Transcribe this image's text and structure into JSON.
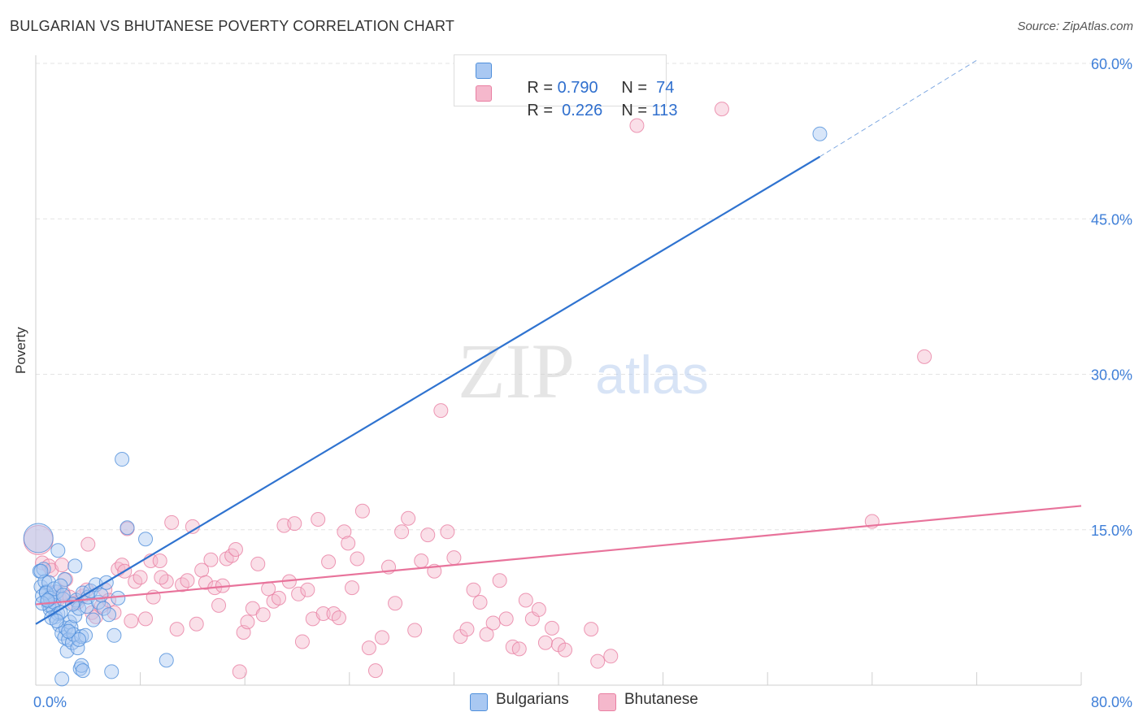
{
  "title": "BULGARIAN VS BHUTANESE POVERTY CORRELATION CHART",
  "source": "Source: ZipAtlas.com",
  "watermark": {
    "zip": "ZIP",
    "atlas": "atlas"
  },
  "legend_top": {
    "rows": [
      {
        "r_label": "R = ",
        "r_value": "0.790",
        "n_label": "N = ",
        "n_value": " 74"
      },
      {
        "r_label": "R = ",
        "r_value": " 0.226",
        "n_label": "N = ",
        "n_value": "113"
      }
    ]
  },
  "legend_bottom": {
    "bulgarians": "Bulgarians",
    "bhutanese": "Bhutanese"
  },
  "colors": {
    "blue_fill": "#a9c8f2",
    "blue_stroke": "#4f8fdb",
    "blue_line": "#2f73d0",
    "pink_fill": "#f5b8cc",
    "pink_stroke": "#e97fa2",
    "pink_line": "#e8739b",
    "axis_text": "#3f7fd8",
    "grid": "#e3e3e3"
  },
  "chart_data": {
    "type": "scatter",
    "title": "BULGARIAN VS BHUTANESE POVERTY CORRELATION CHART",
    "xlabel": "",
    "ylabel": "Poverty",
    "xlim": [
      0,
      80
    ],
    "ylim": [
      0,
      60
    ],
    "x_tick_labels": [
      "0.0%",
      "80.0%"
    ],
    "y_tick_labels": [
      "15.0%",
      "30.0%",
      "45.0%",
      "60.0%"
    ],
    "y_tick_values": [
      15,
      30,
      45,
      60
    ],
    "series": [
      {
        "name": "Bulgarians",
        "R": 0.79,
        "N": 74,
        "trend": {
          "x0": 0,
          "y0": 5.9,
          "x1": 60,
          "y1": 51.0,
          "dash_to_x": 72,
          "dash_to_y": 60.3
        },
        "points": [
          [
            0.2,
            14.2
          ],
          [
            0.3,
            11.0
          ],
          [
            0.4,
            9.5
          ],
          [
            0.5,
            8.6
          ],
          [
            0.6,
            11.2
          ],
          [
            0.7,
            10.0
          ],
          [
            0.8,
            9.0
          ],
          [
            0.9,
            8.1
          ],
          [
            1.0,
            7.7
          ],
          [
            1.1,
            7.3
          ],
          [
            1.2,
            8.5
          ],
          [
            1.3,
            7.5
          ],
          [
            1.4,
            8.0
          ],
          [
            1.5,
            6.6
          ],
          [
            1.6,
            9.0
          ],
          [
            1.7,
            6.9
          ],
          [
            1.8,
            5.8
          ],
          [
            1.9,
            7.0
          ],
          [
            2.0,
            5.0
          ],
          [
            2.1,
            8.3
          ],
          [
            2.2,
            4.6
          ],
          [
            2.3,
            5.5
          ],
          [
            2.4,
            3.3
          ],
          [
            2.5,
            4.4
          ],
          [
            2.6,
            6.1
          ],
          [
            2.7,
            5.6
          ],
          [
            2.8,
            4.1
          ],
          [
            2.9,
            4.9
          ],
          [
            3.0,
            6.7
          ],
          [
            3.1,
            8.2
          ],
          [
            3.2,
            3.6
          ],
          [
            3.3,
            7.4
          ],
          [
            3.5,
            4.7
          ],
          [
            3.6,
            8.9
          ],
          [
            3.8,
            4.8
          ],
          [
            3.9,
            7.6
          ],
          [
            4.0,
            8.5
          ],
          [
            4.2,
            9.1
          ],
          [
            4.4,
            6.3
          ],
          [
            4.6,
            9.7
          ],
          [
            4.8,
            8.0
          ],
          [
            5.0,
            8.7
          ],
          [
            5.2,
            7.4
          ],
          [
            5.4,
            9.9
          ],
          [
            5.6,
            6.8
          ],
          [
            5.8,
            1.3
          ],
          [
            6.0,
            4.8
          ],
          [
            6.3,
            8.4
          ],
          [
            6.6,
            21.8
          ],
          [
            7.0,
            15.2
          ],
          [
            8.4,
            14.1
          ],
          [
            10.0,
            2.4
          ],
          [
            1.0,
            9.9
          ],
          [
            0.8,
            8.9
          ],
          [
            2.2,
            10.2
          ],
          [
            2.8,
            7.8
          ],
          [
            1.7,
            13.0
          ],
          [
            3.0,
            11.5
          ],
          [
            2.0,
            0.6
          ],
          [
            3.4,
            1.6
          ],
          [
            3.5,
            1.9
          ],
          [
            3.6,
            1.4
          ],
          [
            1.1,
            8.4
          ],
          [
            1.4,
            9.3
          ],
          [
            0.5,
            7.9
          ],
          [
            1.2,
            6.5
          ],
          [
            1.9,
            9.6
          ],
          [
            2.1,
            8.7
          ],
          [
            0.4,
            11.0
          ],
          [
            1.6,
            6.2
          ],
          [
            2.5,
            5.2
          ],
          [
            3.3,
            4.4
          ],
          [
            60.0,
            53.2
          ],
          [
            0.9,
            8.2
          ]
        ]
      },
      {
        "name": "Bhutanese",
        "R": 0.226,
        "N": 113,
        "trend": {
          "x0": 0,
          "y0": 7.8,
          "x1": 80,
          "y1": 17.3
        },
        "points": [
          [
            0.2,
            14.0
          ],
          [
            0.5,
            11.8
          ],
          [
            1.0,
            11.5
          ],
          [
            1.2,
            11.1
          ],
          [
            1.5,
            9.0
          ],
          [
            1.8,
            8.4
          ],
          [
            2.1,
            8.9
          ],
          [
            2.3,
            10.2
          ],
          [
            2.6,
            8.5
          ],
          [
            2.9,
            7.9
          ],
          [
            3.2,
            8.0
          ],
          [
            3.6,
            8.6
          ],
          [
            4.0,
            13.6
          ],
          [
            4.3,
            7.0
          ],
          [
            4.6,
            6.6
          ],
          [
            5.0,
            7.6
          ],
          [
            5.3,
            9.2
          ],
          [
            5.6,
            8.2
          ],
          [
            6.0,
            7.0
          ],
          [
            6.3,
            11.2
          ],
          [
            6.6,
            11.6
          ],
          [
            7.0,
            15.1
          ],
          [
            7.3,
            6.2
          ],
          [
            7.6,
            10.0
          ],
          [
            8.0,
            10.4
          ],
          [
            8.4,
            6.4
          ],
          [
            8.8,
            12.0
          ],
          [
            9.0,
            8.5
          ],
          [
            9.5,
            12.0
          ],
          [
            10.0,
            10.0
          ],
          [
            10.4,
            15.7
          ],
          [
            10.8,
            5.4
          ],
          [
            11.2,
            9.7
          ],
          [
            11.6,
            10.1
          ],
          [
            12.0,
            15.3
          ],
          [
            12.3,
            5.9
          ],
          [
            12.7,
            11.1
          ],
          [
            13.0,
            9.9
          ],
          [
            13.4,
            12.1
          ],
          [
            13.7,
            9.4
          ],
          [
            14.0,
            7.7
          ],
          [
            14.3,
            9.6
          ],
          [
            14.6,
            12.2
          ],
          [
            15.0,
            12.5
          ],
          [
            15.3,
            13.1
          ],
          [
            15.6,
            1.3
          ],
          [
            15.9,
            5.1
          ],
          [
            16.2,
            6.1
          ],
          [
            16.6,
            7.4
          ],
          [
            17.0,
            11.7
          ],
          [
            17.4,
            6.8
          ],
          [
            17.8,
            9.3
          ],
          [
            18.2,
            8.1
          ],
          [
            18.6,
            8.4
          ],
          [
            19.0,
            15.4
          ],
          [
            19.4,
            10.0
          ],
          [
            19.8,
            15.6
          ],
          [
            20.1,
            8.8
          ],
          [
            20.4,
            4.2
          ],
          [
            20.8,
            9.2
          ],
          [
            21.2,
            6.4
          ],
          [
            21.6,
            16.0
          ],
          [
            22.0,
            6.9
          ],
          [
            22.4,
            11.9
          ],
          [
            22.8,
            6.9
          ],
          [
            23.2,
            6.5
          ],
          [
            23.6,
            14.8
          ],
          [
            23.9,
            13.7
          ],
          [
            24.2,
            9.4
          ],
          [
            24.6,
            12.2
          ],
          [
            25.0,
            16.8
          ],
          [
            25.5,
            3.6
          ],
          [
            26.0,
            1.4
          ],
          [
            26.5,
            4.6
          ],
          [
            27.0,
            11.4
          ],
          [
            27.5,
            7.9
          ],
          [
            28.0,
            14.8
          ],
          [
            28.5,
            16.1
          ],
          [
            29.0,
            5.3
          ],
          [
            29.5,
            12.0
          ],
          [
            30.0,
            14.5
          ],
          [
            30.5,
            11.0
          ],
          [
            31.0,
            26.5
          ],
          [
            31.5,
            14.8
          ],
          [
            32.0,
            12.3
          ],
          [
            32.5,
            4.7
          ],
          [
            33.0,
            5.4
          ],
          [
            33.5,
            9.2
          ],
          [
            34.0,
            8.0
          ],
          [
            34.5,
            4.9
          ],
          [
            35.0,
            6.0
          ],
          [
            35.5,
            10.1
          ],
          [
            36.0,
            6.4
          ],
          [
            36.5,
            3.7
          ],
          [
            37.0,
            3.5
          ],
          [
            37.5,
            8.2
          ],
          [
            38.0,
            6.4
          ],
          [
            38.5,
            7.3
          ],
          [
            39.0,
            4.1
          ],
          [
            39.5,
            5.5
          ],
          [
            40.0,
            3.9
          ],
          [
            40.5,
            3.4
          ],
          [
            42.5,
            5.4
          ],
          [
            43.0,
            2.3
          ],
          [
            44.0,
            2.8
          ],
          [
            46.0,
            54.0
          ],
          [
            52.5,
            55.6
          ],
          [
            68.0,
            31.7
          ],
          [
            64.0,
            15.8
          ],
          [
            2.0,
            11.6
          ],
          [
            3.9,
            9.2
          ],
          [
            6.8,
            11.0
          ],
          [
            9.6,
            10.4
          ]
        ]
      }
    ]
  }
}
